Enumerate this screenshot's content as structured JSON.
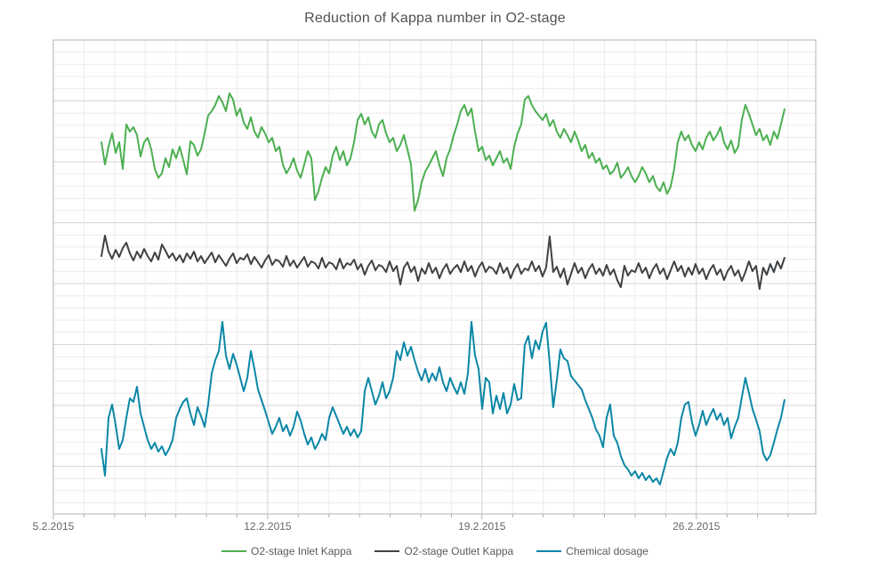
{
  "title": "Reduction of Kappa number in O2-stage",
  "chart_data": {
    "type": "line",
    "title": "Reduction of Kappa number in O2-stage",
    "xlabel": "",
    "ylabel": "",
    "x_axis": {
      "days_total": 24.9,
      "minor_tick_step_days": 1,
      "tick_labels": [
        {
          "day": 0,
          "label": "5.2.2015"
        },
        {
          "day": 7,
          "label": "12.2.2015"
        },
        {
          "day": 14,
          "label": "19.2.2015"
        },
        {
          "day": 21,
          "label": "26.2.2015"
        }
      ],
      "label_color": "#666666"
    },
    "y_axis": {
      "labels_visible": false,
      "range": [
        0,
        533
      ],
      "note": "no numeric y-axis labels are shown in the chart; values are on an unlabeled linear scale"
    },
    "grid": {
      "major_color": "#d6d6d6",
      "minor_color": "#ececec",
      "border_color": "#b3b3b3",
      "tick_color": "#b0b0b0",
      "y_minor_step": 13.7,
      "y_major_every": 5
    },
    "legend": {
      "position": "bottom"
    },
    "series": [
      {
        "name": "O2-stage Inlet Kappa",
        "color": "#4caf50",
        "x_start_day": 1.57,
        "x_end_day": 23.88,
        "values": [
          418,
          393,
          413,
          428,
          406,
          418,
          388,
          438,
          430,
          435,
          426,
          402,
          418,
          423,
          410,
          388,
          378,
          383,
          400,
          390,
          410,
          400,
          413,
          398,
          382,
          419,
          415,
          403,
          410,
          428,
          448,
          453,
          460,
          470,
          463,
          453,
          473,
          466,
          448,
          456,
          440,
          433,
          446,
          430,
          423,
          435,
          428,
          418,
          423,
          408,
          413,
          393,
          383,
          390,
          400,
          386,
          378,
          393,
          408,
          400,
          353,
          363,
          378,
          390,
          383,
          403,
          413,
          398,
          408,
          392,
          400,
          418,
          443,
          450,
          438,
          446,
          430,
          423,
          438,
          443,
          428,
          418,
          423,
          408,
          415,
          426,
          410,
          393,
          341,
          353,
          373,
          385,
          392,
          400,
          408,
          392,
          380,
          400,
          410,
          426,
          438,
          453,
          460,
          448,
          456,
          430,
          408,
          413,
          398,
          403,
          392,
          400,
          408,
          395,
          400,
          388,
          413,
          428,
          438,
          466,
          470,
          460,
          453,
          448,
          443,
          450,
          436,
          443,
          430,
          423,
          433,
          426,
          418,
          430,
          420,
          408,
          415,
          400,
          406,
          395,
          400,
          388,
          392,
          382,
          386,
          395,
          378,
          383,
          390,
          380,
          373,
          380,
          390,
          383,
          373,
          380,
          368,
          363,
          373,
          360,
          368,
          388,
          418,
          430,
          420,
          426,
          415,
          408,
          418,
          410,
          423,
          430,
          420,
          426,
          435,
          418,
          410,
          420,
          406,
          413,
          443,
          460,
          450,
          438,
          426,
          433,
          420,
          426,
          415,
          430,
          422,
          438,
          455
        ]
      },
      {
        "name": "O2-stage Outlet Kappa",
        "color": "#3f4245",
        "x_start_day": 1.57,
        "x_end_day": 23.88,
        "values": [
          290,
          313,
          295,
          287,
          297,
          289,
          299,
          305,
          293,
          285,
          295,
          288,
          298,
          290,
          284,
          294,
          286,
          303,
          296,
          288,
          293,
          285,
          291,
          283,
          293,
          287,
          295,
          284,
          290,
          282,
          288,
          294,
          283,
          291,
          285,
          279,
          287,
          293,
          282,
          288,
          286,
          292,
          281,
          289,
          283,
          277,
          285,
          291,
          280,
          286,
          284,
          278,
          290,
          279,
          285,
          277,
          283,
          289,
          278,
          284,
          282,
          276,
          288,
          277,
          283,
          281,
          275,
          287,
          276,
          282,
          280,
          286,
          275,
          281,
          269,
          279,
          285,
          274,
          280,
          278,
          272,
          284,
          273,
          279,
          258,
          277,
          283,
          272,
          278,
          262,
          276,
          270,
          282,
          271,
          277,
          265,
          275,
          281,
          270,
          276,
          280,
          272,
          284,
          273,
          279,
          267,
          277,
          283,
          272,
          278,
          276,
          270,
          282,
          271,
          277,
          265,
          275,
          281,
          270,
          276,
          274,
          284,
          273,
          279,
          267,
          277,
          312,
          272,
          278,
          266,
          276,
          258,
          270,
          282,
          271,
          277,
          265,
          275,
          281,
          270,
          276,
          268,
          280,
          269,
          275,
          263,
          255,
          279,
          268,
          274,
          272,
          282,
          271,
          277,
          265,
          275,
          281,
          270,
          276,
          264,
          274,
          284,
          273,
          279,
          267,
          277,
          269,
          281,
          270,
          276,
          264,
          274,
          280,
          269,
          275,
          263,
          273,
          279,
          268,
          274,
          262,
          272,
          284,
          273,
          279,
          253,
          277,
          269,
          281,
          272,
          284,
          276,
          288
        ]
      },
      {
        "name": "Chemical dosage",
        "color": "#0b87a6",
        "x_start_day": 1.57,
        "x_end_day": 23.88,
        "values": [
          73,
          43,
          108,
          123,
          100,
          73,
          83,
          108,
          130,
          126,
          143,
          113,
          98,
          83,
          73,
          80,
          70,
          76,
          66,
          73,
          83,
          108,
          118,
          126,
          130,
          113,
          100,
          120,
          110,
          98,
          123,
          158,
          173,
          183,
          216,
          178,
          163,
          180,
          168,
          153,
          138,
          153,
          183,
          163,
          140,
          128,
          116,
          103,
          90,
          98,
          108,
          93,
          100,
          88,
          98,
          115,
          105,
          90,
          78,
          86,
          73,
          80,
          90,
          83,
          108,
          120,
          110,
          100,
          90,
          98,
          88,
          95,
          86,
          93,
          138,
          153,
          138,
          123,
          133,
          148,
          130,
          138,
          153,
          183,
          173,
          193,
          178,
          188,
          173,
          160,
          150,
          163,
          148,
          158,
          150,
          165,
          148,
          138,
          153,
          143,
          135,
          148,
          135,
          158,
          216,
          178,
          163,
          118,
          153,
          148,
          113,
          133,
          118,
          136,
          113,
          123,
          146,
          128,
          130,
          190,
          200,
          175,
          195,
          185,
          205,
          215,
          170,
          120,
          150,
          185,
          175,
          172,
          155,
          150,
          145,
          140,
          128,
          118,
          108,
          95,
          88,
          75,
          108,
          123,
          88,
          80,
          65,
          55,
          50,
          43,
          48,
          40,
          46,
          38,
          43,
          36,
          40,
          33,
          48,
          63,
          73,
          66,
          80,
          108,
          123,
          126,
          103,
          88,
          100,
          116,
          100,
          110,
          118,
          106,
          113,
          100,
          108,
          85,
          98,
          108,
          131,
          153,
          136,
          118,
          106,
          93,
          68,
          60,
          66,
          80,
          95,
          108,
          128
        ]
      }
    ]
  }
}
